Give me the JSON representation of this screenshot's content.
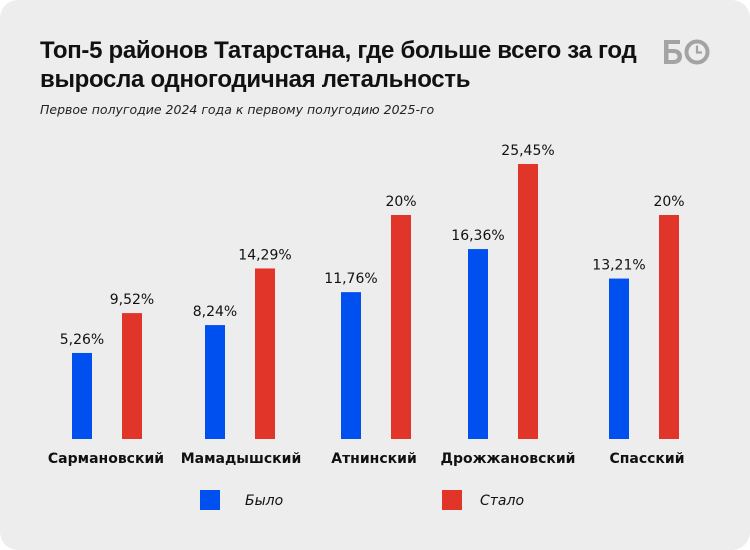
{
  "title": "Топ-5 районов Татарстана, где больше всего за год выросла одногодичная летальность",
  "title_line1": "Топ-5 районов Татарстана, где больше всего за год",
  "title_line2": "выросла одногодичная летальность",
  "subtitle": "Первое полугодие 2024 года к первому полугодию 2025-го",
  "logo": {
    "text": "БО",
    "icon": "clock-o-logo"
  },
  "colors": {
    "before": "#0050ef",
    "after": "#e2352a",
    "background": "#ededed"
  },
  "chart_data": {
    "type": "bar",
    "title": "Топ-5 районов Татарстана, где больше всего за год выросла одногодичная летальность",
    "subtitle": "Первое полугодие 2024 года к первому полугодию 2025-го",
    "categories": [
      "Сармановский",
      "Мамадышский",
      "Атнинский",
      "Дрожжановский",
      "Спасский"
    ],
    "series": [
      {
        "name": "Было",
        "values": [
          5.26,
          8.24,
          11.76,
          16.36,
          13.21
        ],
        "labels": [
          "5,26%",
          "8,24%",
          "11,76%",
          "16,36%",
          "13,21%"
        ]
      },
      {
        "name": "Стало",
        "values": [
          9.52,
          14.29,
          20,
          25.45,
          20
        ],
        "labels": [
          "9,52%",
          "14,29%",
          "20%",
          "25,45%",
          "20%"
        ]
      }
    ],
    "xlabel": "",
    "ylabel": "",
    "unit": "%",
    "grid": false,
    "legend_position": "bottom"
  }
}
